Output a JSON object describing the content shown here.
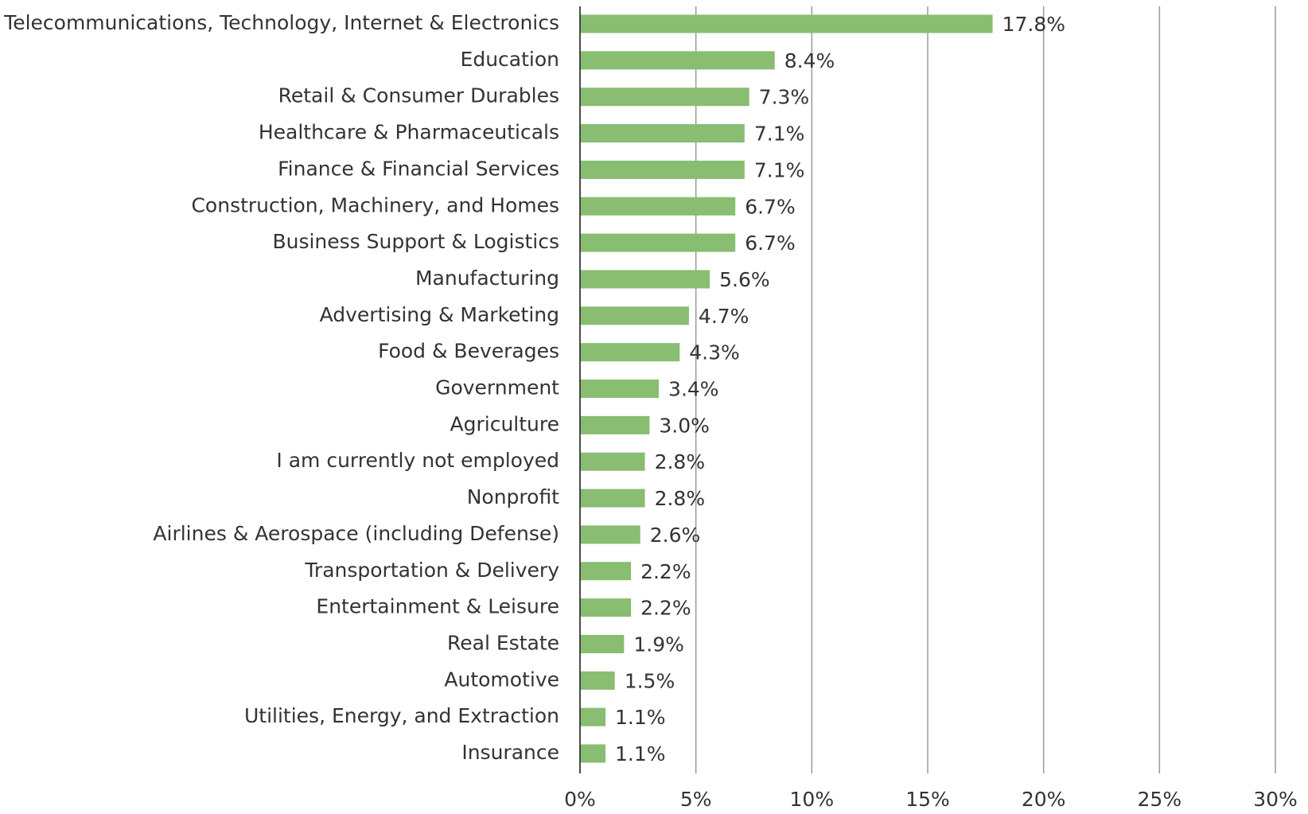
{
  "chart_data": {
    "type": "barh",
    "categories": [
      "Telecommunications, Technology, Internet & Electronics",
      "Education",
      "Retail & Consumer Durables",
      "Healthcare & Pharmaceuticals",
      "Finance & Financial Services",
      "Construction, Machinery, and Homes",
      "Business Support & Logistics",
      "Manufacturing",
      "Advertising & Marketing",
      "Food & Beverages",
      "Government",
      "Agriculture",
      "I am currently not employed",
      "Nonprofit",
      "Airlines & Aerospace (including Defense)",
      "Transportation & Delivery",
      "Entertainment & Leisure",
      "Real Estate",
      "Automotive",
      "Utilities, Energy, and Extraction",
      "Insurance"
    ],
    "values": [
      17.8,
      8.4,
      7.3,
      7.1,
      7.1,
      6.7,
      6.7,
      5.6,
      4.7,
      4.3,
      3.4,
      3.0,
      2.8,
      2.8,
      2.6,
      2.2,
      2.2,
      1.9,
      1.5,
      1.1,
      1.1
    ],
    "value_labels": [
      "17.8%",
      "8.4%",
      "7.3%",
      "7.1%",
      "7.1%",
      "6.7%",
      "6.7%",
      "5.6%",
      "4.7%",
      "4.3%",
      "3.4%",
      "3.0%",
      "2.8%",
      "2.8%",
      "2.6%",
      "2.2%",
      "2.2%",
      "1.9%",
      "1.5%",
      "1.1%",
      "1.1%"
    ],
    "color": "#88bd72",
    "xlim": [
      0,
      30
    ],
    "xticks": [
      {
        "value": 0,
        "label": "0%"
      },
      {
        "value": 5,
        "label": "5%"
      },
      {
        "value": 10,
        "label": "10%"
      },
      {
        "value": 15,
        "label": "15%"
      },
      {
        "value": 20,
        "label": "20%"
      },
      {
        "value": 25,
        "label": "25%"
      },
      {
        "value": 30,
        "label": "30%"
      }
    ],
    "grid": true
  }
}
